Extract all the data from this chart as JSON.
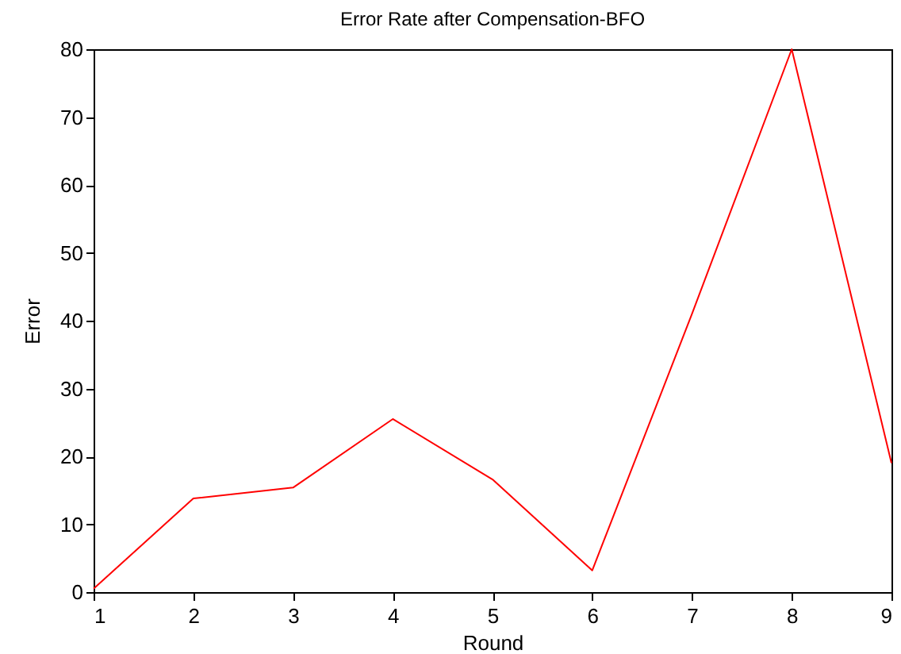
{
  "chart_data": {
    "type": "line",
    "title": "Error Rate after Compensation-BFO",
    "xlabel": "Round",
    "ylabel": "Error",
    "x": [
      1,
      2,
      3,
      4,
      5,
      6,
      7,
      8,
      9
    ],
    "series": [
      {
        "color": "#ff0000",
        "values": [
          0.5,
          13.8,
          15.4,
          25.5,
          16.6,
          3.2,
          41,
          80,
          19
        ]
      }
    ],
    "xlim": [
      1,
      9
    ],
    "xticks": [
      1,
      2,
      3,
      4,
      5,
      6,
      7,
      8,
      9
    ],
    "ylim": [
      0,
      80
    ],
    "yticks": [
      0,
      10,
      20,
      30,
      40,
      50,
      60,
      70,
      80
    ],
    "grid": false,
    "marker": "none",
    "line_style": "solid"
  }
}
